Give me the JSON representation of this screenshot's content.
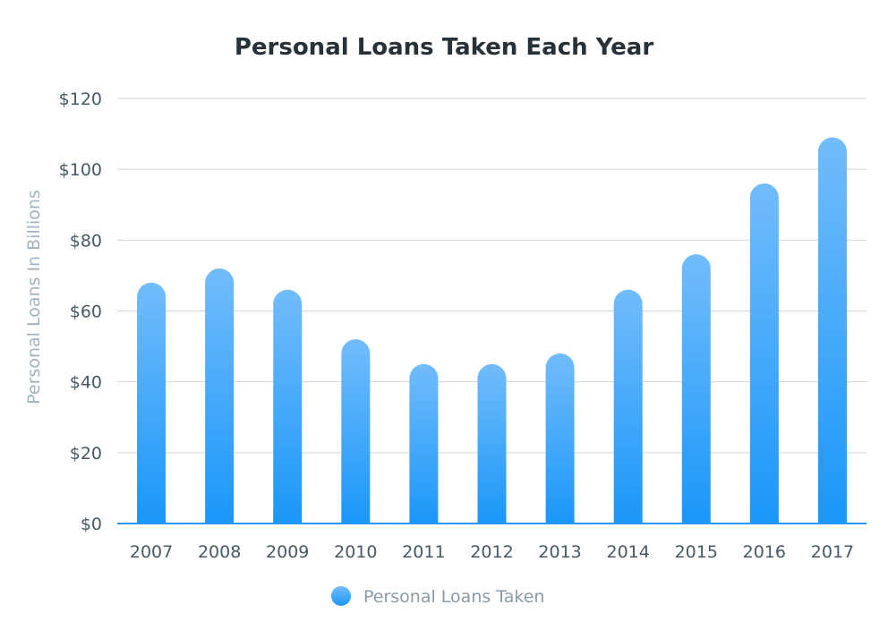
{
  "chart_data": {
    "type": "bar",
    "title": "Personal Loans Taken Each Year",
    "xlabel": "",
    "ylabel": "Personal Loans In Billions",
    "categories": [
      "2007",
      "2008",
      "2009",
      "2010",
      "2011",
      "2012",
      "2013",
      "2014",
      "2015",
      "2016",
      "2017"
    ],
    "series": [
      {
        "name": "Personal Loans Taken",
        "values": [
          68,
          72,
          66,
          52,
          45,
          45,
          48,
          66,
          76,
          96,
          109
        ]
      }
    ],
    "ylim": [
      0,
      120
    ],
    "yticks": [
      0,
      20,
      40,
      60,
      80,
      100,
      120
    ],
    "ytick_labels": [
      "$0",
      "$20",
      "$40",
      "$60",
      "$80",
      "$100",
      "$120"
    ],
    "grid": true,
    "legend_position": "bottom",
    "colors": {
      "bar_top": "#72bcfb",
      "bar_bottom": "#1a97f9",
      "grid": "#cfd8dc",
      "axis": "#2196f3"
    }
  }
}
